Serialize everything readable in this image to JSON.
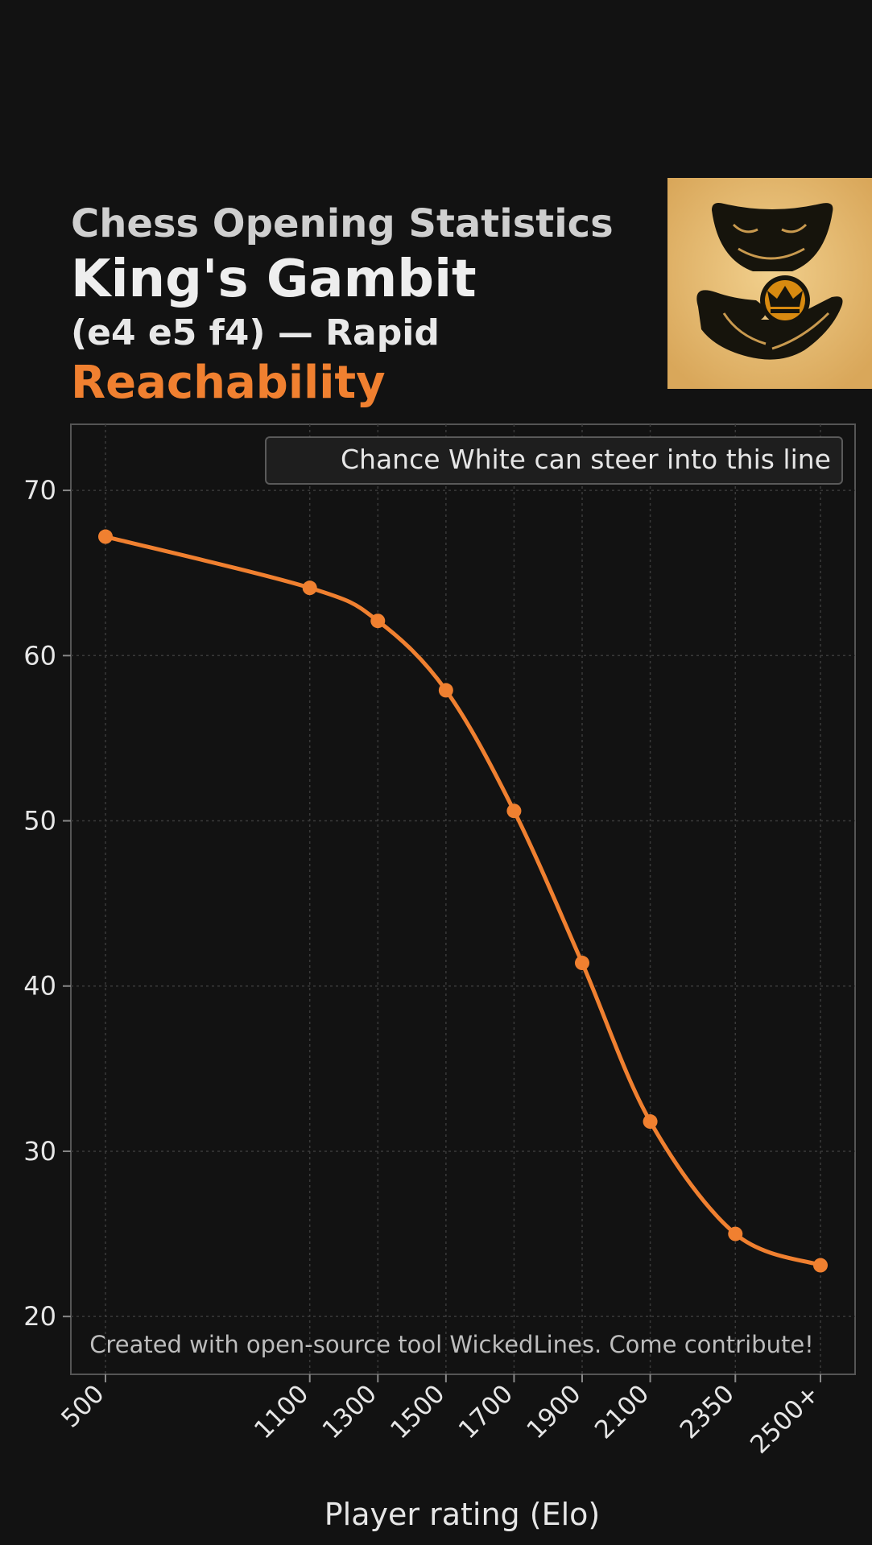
{
  "header": {
    "supertitle": "Chess Opening Statistics",
    "opening_name": "King's Gambit",
    "opening_line": "(e4 e5 f4) — Rapid",
    "metric": "Reachability"
  },
  "colors": {
    "background": "#121212",
    "accent": "#f08030",
    "grid": "#3a3a3a",
    "text": "#e6e6e6"
  },
  "logo": {
    "icon": "hand-giving-coin-with-crown-icon"
  },
  "chart_data": {
    "type": "line",
    "categories": [
      "500",
      "1100",
      "1300",
      "1500",
      "1700",
      "1900",
      "2100",
      "2350",
      "2500+"
    ],
    "series": [
      {
        "name": "Chance White can steer into this line",
        "values": [
          67.2,
          64.1,
          62.1,
          57.9,
          50.6,
          41.4,
          31.8,
          25.0,
          23.1
        ]
      }
    ],
    "xlabel": "Player rating (Elo)",
    "ylabel": "",
    "ylim": [
      16.5,
      74
    ],
    "yticks": [
      20,
      30,
      40,
      50,
      60,
      70
    ],
    "grid": true,
    "legend_position": "top-right",
    "footnote": "Created with open-source tool WickedLines. Come contribute!"
  }
}
